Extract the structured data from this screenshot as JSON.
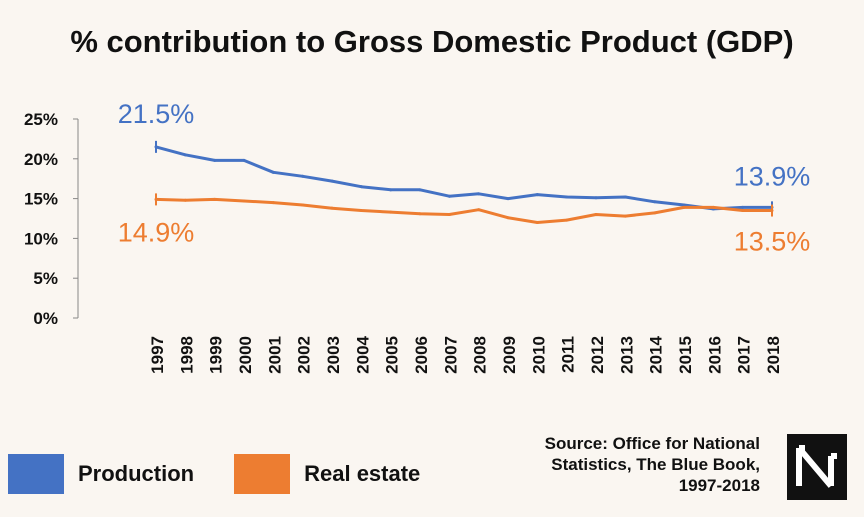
{
  "title": "% contribution to Gross Domestic Product (GDP)",
  "colors": {
    "production": "#4472c4",
    "real_estate": "#ed7d31",
    "axis": "#888888",
    "background": "#faf6f1"
  },
  "legend": {
    "production": "Production",
    "real_estate": "Real estate"
  },
  "source": {
    "line1": "Source: Office for National",
    "line2": "Statistics, The Blue Book,",
    "line3": "1997-2018"
  },
  "logo": {
    "icon": "nm-monogram-logo"
  },
  "chart_data": {
    "type": "line",
    "title": "% contribution to Gross Domestic Product (GDP)",
    "xlabel": "",
    "ylabel": "",
    "ylim": [
      0,
      25
    ],
    "yticks": [
      "0%",
      "5%",
      "10%",
      "15%",
      "20%",
      "25%"
    ],
    "grid": false,
    "legend_position": "bottom-left",
    "categories": [
      "1997",
      "1998",
      "1999",
      "2000",
      "2001",
      "2002",
      "2003",
      "2004",
      "2005",
      "2006",
      "2007",
      "2008",
      "2009",
      "2010",
      "2011",
      "2012",
      "2013",
      "2014",
      "2015",
      "2016",
      "2017",
      "2018"
    ],
    "series": [
      {
        "name": "Production",
        "values": [
          21.5,
          20.5,
          19.8,
          19.8,
          18.3,
          17.8,
          17.2,
          16.5,
          16.1,
          16.1,
          15.3,
          15.6,
          15.0,
          15.5,
          15.2,
          15.1,
          15.2,
          14.6,
          14.2,
          13.7,
          13.9,
          13.9
        ],
        "start_label": "21.5%",
        "end_label": "13.9%"
      },
      {
        "name": "Real estate",
        "values": [
          14.9,
          14.8,
          14.9,
          14.7,
          14.5,
          14.2,
          13.8,
          13.5,
          13.3,
          13.1,
          13.0,
          13.6,
          12.6,
          12.0,
          12.3,
          13.0,
          12.8,
          13.2,
          13.9,
          13.9,
          13.5,
          13.5
        ],
        "start_label": "14.9%",
        "end_label": "13.5%"
      }
    ]
  }
}
